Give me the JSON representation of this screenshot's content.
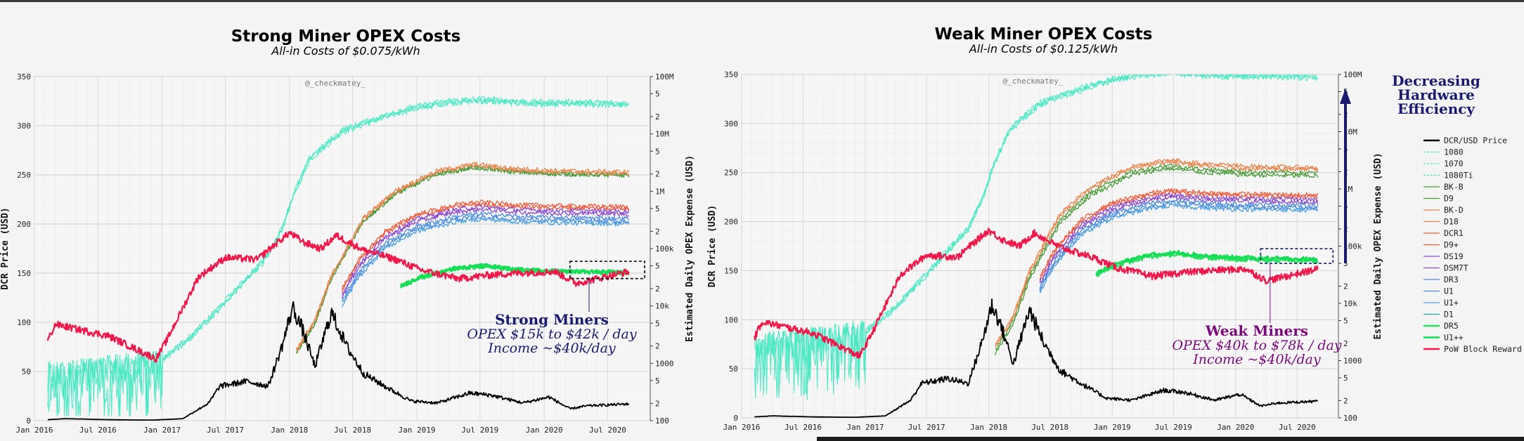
{
  "chart_data": [
    {
      "type": "line",
      "title": "Strong Miner OPEX Costs",
      "subtitle": "All-in Costs of $0.075/kWh",
      "watermark": "@_checkmatey_",
      "ylabel_left": "DCR Price (USD)",
      "ylabel_right": "Estimated Daily OPEX Expense (USD)",
      "ylim_left": [
        0,
        350
      ],
      "yscale_right": "log",
      "ylim_right": [
        100,
        100000000
      ],
      "xlim": [
        "2016-01-01",
        "2020-10-31"
      ],
      "x_ticks": [
        "Jan 2016",
        "Jul 2016",
        "Jan 2017",
        "Jul 2017",
        "Jan 2018",
        "Jul 2018",
        "Jan 2019",
        "Jul 2019",
        "Jan 2020",
        "Jul 2020"
      ],
      "y_ticks_left": [
        "0",
        "50",
        "100",
        "150",
        "200",
        "250",
        "300",
        "350"
      ],
      "y_ticks_right": [
        "100",
        "2",
        "5",
        "1000",
        "2",
        "5",
        "10k",
        "2",
        "5",
        "100k",
        "2",
        "5",
        "1M",
        "2",
        "5",
        "10M",
        "2",
        "5",
        "100M"
      ],
      "grid": true,
      "annotation": {
        "title": "Strong Miners",
        "line1": "OPEX $15k to $42k / day",
        "line2": "Income ~$40k/day",
        "color": "#1a1a6e"
      },
      "highlight_box": {
        "x": [
          "2020-03-15",
          "2020-10-15"
        ],
        "y": [
          30000,
          60000
        ],
        "color": "#000000"
      }
    },
    {
      "type": "line",
      "title": "Weak Miner OPEX Costs",
      "subtitle": "All-in Costs of $0.125/kWh",
      "watermark": "@_checkmatey_",
      "ylabel_left": "DCR Price (USD)",
      "ylabel_right": "Estimated Daily OPEX Expense (USD)",
      "ylim_left": [
        0,
        350
      ],
      "yscale_right": "log",
      "ylim_right": [
        100,
        100000000
      ],
      "xlim": [
        "2016-01-01",
        "2020-10-31"
      ],
      "x_ticks": [
        "Jan 2016",
        "Jul 2016",
        "Jan 2017",
        "Jul 2017",
        "Jan 2018",
        "Jul 2018",
        "Jan 2019",
        "Jul 2019",
        "Jan 2020",
        "Jul 2020"
      ],
      "y_ticks_left": [
        "0",
        "50",
        "100",
        "150",
        "200",
        "250",
        "300",
        "350"
      ],
      "y_ticks_right": [
        "100",
        "2",
        "5",
        "1000",
        "2",
        "5",
        "10k",
        "2",
        "5",
        "100k",
        "2",
        "5",
        "1M",
        "2",
        "5",
        "10M",
        "2",
        "5",
        "100M"
      ],
      "grid": true,
      "annotation": {
        "title": "Weak Miners",
        "line1": "OPEX $40k to $78k / day",
        "line2": "Income ~$40k/day",
        "color": "#7a0a7a"
      },
      "highlight_box": {
        "x": [
          "2020-03-15",
          "2020-10-15"
        ],
        "y": [
          50000,
          90000
        ],
        "color": "#1a1a6e"
      },
      "arrow_label": [
        "Decreasing",
        "Hardware",
        "Efficiency"
      ]
    }
  ],
  "series_style": {
    "DCR/USD Price": "#000000",
    "PoW Block Reward": "#f0184a",
    "1080": "#40e8c0",
    "1070": "#40e8c0",
    "1080Ti": "#40e8c0",
    "BK-B": "#4a9a3a",
    "D9": "#4a9a3a",
    "BK-D": "#e8844a",
    "D18": "#e8844a",
    "DCR1": "#f05a3a",
    "D9+": "#f05a3a",
    "DS19": "#8a4ad0",
    "DSM7T": "#8a4ad0",
    "DR3": "#4a8ae0",
    "U1": "#4a8ae0",
    "U1+": "#4aa0e0",
    "D1": "#2aa0a0",
    "DR5": "#2ae060",
    "U1++": "#10e050"
  },
  "series_data": {
    "price": {
      "dates": [
        "2016-02-08",
        "2016-04-01",
        "2016-08-01",
        "2016-12-01",
        "2017-03-01",
        "2017-05-15",
        "2017-06-15",
        "2017-09-01",
        "2017-11-01",
        "2017-12-10",
        "2018-01-10",
        "2018-02-05",
        "2018-03-15",
        "2018-05-01",
        "2018-06-15",
        "2018-08-01",
        "2018-10-01",
        "2018-12-15",
        "2019-03-01",
        "2019-06-01",
        "2019-08-01",
        "2019-11-01",
        "2020-01-15",
        "2020-03-15",
        "2020-05-01",
        "2020-08-31"
      ],
      "values": [
        1,
        2,
        1,
        0.5,
        2,
        18,
        35,
        40,
        35,
        75,
        115,
        95,
        55,
        110,
        75,
        48,
        35,
        20,
        18,
        28,
        26,
        18,
        24,
        12,
        15,
        17
      ]
    },
    "block_reward": {
      "dates": [
        "2016-02-08",
        "2016-03-01",
        "2016-08-01",
        "2016-12-15",
        "2017-01-15",
        "2017-04-15",
        "2017-07-01",
        "2017-10-01",
        "2017-11-01",
        "2018-01-01",
        "2018-02-10",
        "2018-04-01",
        "2018-05-15",
        "2018-08-01",
        "2018-11-01",
        "2019-01-15",
        "2019-05-01",
        "2019-08-01",
        "2019-11-01",
        "2020-02-01",
        "2020-04-01",
        "2020-08-31"
      ],
      "values": [
        2500,
        4800,
        3000,
        1200,
        2600,
        32000,
        70000,
        65000,
        95000,
        190000,
        130000,
        100000,
        170000,
        95000,
        65000,
        42000,
        30000,
        35000,
        38000,
        40000,
        25000,
        40000
      ]
    },
    "gpu": {
      "dates": [
        "2016-02-08",
        "2016-06-01",
        "2016-12-15",
        "2017-04-01",
        "2017-08-01",
        "2017-11-01",
        "2017-12-10",
        "2018-01-15",
        "2018-03-01",
        "2018-06-01",
        "2018-09-01",
        "2018-12-01",
        "2019-04-01",
        "2019-07-01",
        "2019-12-01",
        "2020-04-01",
        "2020-08-31"
      ],
      "values": [
        900,
        1100,
        1500,
        5000,
        30000,
        120000,
        350000,
        1500000,
        6000000,
        18000000,
        28000000,
        42000000,
        58000000,
        62000000,
        55000000,
        55000000,
        52000000
      ]
    },
    "asic_early": {
      "dates": [
        "2018-01-20",
        "2018-03-15",
        "2018-05-01",
        "2018-08-01",
        "2018-11-01",
        "2019-03-01",
        "2019-06-15",
        "2019-10-01",
        "2020-02-01",
        "2020-08-31"
      ],
      "values": [
        1500,
        5000,
        30000,
        300000,
        900000,
        2000000,
        2600000,
        2200000,
        2000000,
        1900000
      ]
    },
    "asic_mid": {
      "dates": [
        "2018-06-01",
        "2018-07-15",
        "2018-10-01",
        "2019-01-01",
        "2019-05-01",
        "2019-07-01",
        "2019-11-01",
        "2020-03-01",
        "2020-08-31"
      ],
      "values": [
        20000,
        60000,
        200000,
        400000,
        600000,
        650000,
        580000,
        560000,
        540000
      ]
    },
    "asic_late": {
      "dates": [
        "2018-11-15",
        "2019-01-15",
        "2019-04-15",
        "2019-07-15",
        "2019-11-01",
        "2020-03-01",
        "2020-08-31"
      ],
      "values": [
        22000,
        32000,
        45000,
        50000,
        42000,
        40000,
        38000
      ]
    }
  },
  "legend": {
    "items": [
      "DCR/USD Price",
      "1080",
      "1070",
      "1080Ti",
      "BK-B",
      "D9",
      "BK-D",
      "D18",
      "DCR1",
      "D9+",
      "DS19",
      "DSM7T",
      "DR3",
      "U1",
      "U1+",
      "D1",
      "DR5",
      "U1++",
      "PoW Block Reward"
    ]
  }
}
